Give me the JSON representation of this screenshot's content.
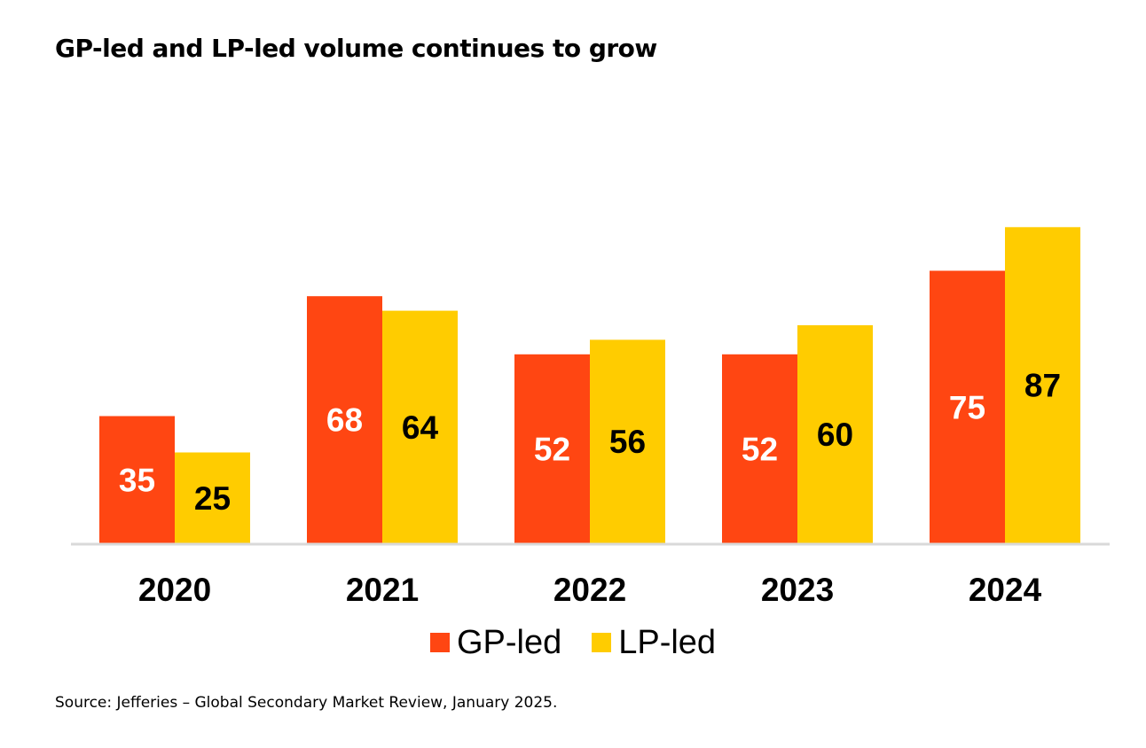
{
  "chart_data": {
    "type": "bar",
    "title": "GP-led and LP-led volume continues to grow",
    "categories": [
      "2020",
      "2021",
      "2022",
      "2023",
      "2024"
    ],
    "series": [
      {
        "name": "GP-led",
        "values": [
          35,
          68,
          52,
          52,
          75
        ],
        "color": "#FF4612",
        "label_color": "#FFFFFF"
      },
      {
        "name": "LP-led",
        "values": [
          25,
          64,
          56,
          60,
          87
        ],
        "color": "#FFCC00",
        "label_color": "#000000"
      }
    ],
    "ylim": [
      0,
      100
    ],
    "grid": false,
    "legend_position": "bottom-center",
    "baseline_color": "#D9D9D9",
    "source": "Source: Jefferies – Global Secondary Market Review, January 2025."
  }
}
